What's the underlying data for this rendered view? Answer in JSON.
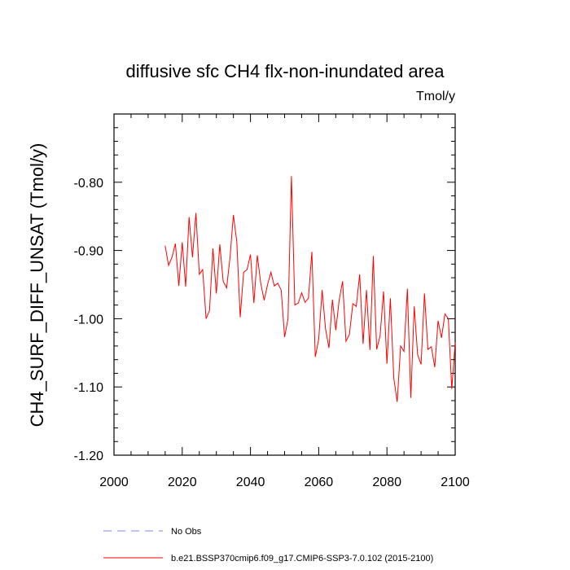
{
  "chart_data": {
    "type": "line",
    "title": "diffusive sfc CH4 flx-non-inundated area",
    "units_label": "Tmol/y",
    "ylabel": "CH4_SURF_DIFF_UNSAT  (Tmol/y)",
    "xlabel": "",
    "xlim": [
      2000,
      2100
    ],
    "ylim": [
      -1.2,
      -0.7
    ],
    "x_ticks": [
      2000,
      2020,
      2040,
      2060,
      2080,
      2100
    ],
    "x_tick_labels": [
      "2000",
      "2020",
      "2040",
      "2060",
      "2080",
      "2100"
    ],
    "y_ticks": [
      -1.2,
      -1.1,
      -1.0,
      -0.9,
      -0.8
    ],
    "y_tick_labels": [
      "-1.20",
      "-1.10",
      "-1.00",
      "-0.90",
      "-0.80"
    ],
    "grid": false,
    "legend_position": "bottom",
    "series": [
      {
        "name": "b.e21.BSSP370cmip6.f09_g17.CMIP6-SSP3-7.0.102 (2015-2100)",
        "color": "#ff0000",
        "style": "solid",
        "x": [
          2015,
          2016,
          2017,
          2018,
          2019,
          2020,
          2021,
          2022,
          2023,
          2024,
          2025,
          2026,
          2027,
          2028,
          2029,
          2030,
          2031,
          2032,
          2033,
          2034,
          2035,
          2036,
          2037,
          2038,
          2039,
          2040,
          2041,
          2042,
          2043,
          2044,
          2045,
          2046,
          2047,
          2048,
          2049,
          2050,
          2051,
          2052,
          2053,
          2054,
          2055,
          2056,
          2057,
          2058,
          2059,
          2060,
          2061,
          2062,
          2063,
          2064,
          2065,
          2066,
          2067,
          2068,
          2069,
          2070,
          2071,
          2072,
          2073,
          2074,
          2075,
          2076,
          2077,
          2078,
          2079,
          2080,
          2081,
          2082,
          2083,
          2084,
          2085,
          2086,
          2087,
          2088,
          2089,
          2090,
          2091,
          2092,
          2093,
          2094,
          2095,
          2096,
          2097,
          2098,
          2099,
          2100
        ],
        "values": [
          -0.893,
          -0.922,
          -0.91,
          -0.89,
          -0.952,
          -0.888,
          -0.953,
          -0.851,
          -0.91,
          -0.845,
          -0.935,
          -0.928,
          -1.0,
          -0.988,
          -0.897,
          -0.963,
          -0.891,
          -0.945,
          -0.955,
          -0.91,
          -0.848,
          -0.887,
          -0.998,
          -0.932,
          -0.928,
          -0.906,
          -0.977,
          -0.907,
          -0.948,
          -0.973,
          -0.95,
          -0.932,
          -0.952,
          -0.948,
          -0.958,
          -1.027,
          -1.0,
          -0.791,
          -0.98,
          -0.977,
          -0.962,
          -0.976,
          -0.97,
          -0.902,
          -1.056,
          -1.03,
          -0.958,
          -1.015,
          -1.043,
          -0.972,
          -1.017,
          -0.973,
          -0.945,
          -1.033,
          -1.023,
          -0.978,
          -0.982,
          -0.935,
          -1.037,
          -0.958,
          -1.046,
          -0.908,
          -1.045,
          -1.025,
          -0.96,
          -1.066,
          -0.97,
          -1.087,
          -1.122,
          -1.04,
          -1.048,
          -0.956,
          -1.116,
          -0.982,
          -1.053,
          -1.067,
          -0.963,
          -1.045,
          -1.041,
          -1.071,
          -1.003,
          -1.028,
          -0.993,
          -1.0,
          -1.103,
          -1.035
        ]
      }
    ],
    "legend": [
      {
        "label": "No Obs",
        "color": "#8080ff",
        "style": "dashed"
      },
      {
        "label": "b.e21.BSSP370cmip6.f09_g17.CMIP6-SSP3-7.0.102 (2015-2100)",
        "color": "#ff0000",
        "style": "solid"
      }
    ]
  }
}
